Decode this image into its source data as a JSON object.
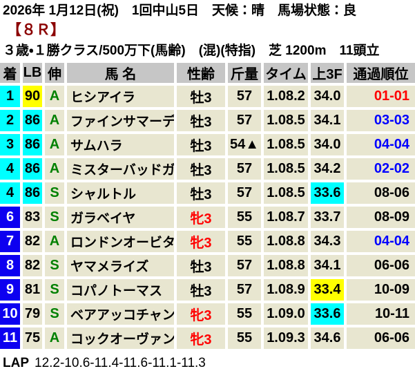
{
  "header": {
    "date_line": "2026年 1月12日(祝)　1回中山5日　天候：晴　馬場状態：良",
    "race_number": "【８Ｒ】",
    "conditions_line": "３歳・１勝クラス/500万下(馬齢)　(混)(特指)　芝 1200m　11頭立"
  },
  "table": {
    "columns": [
      {
        "id": "finish",
        "label": "着"
      },
      {
        "id": "lb",
        "label": "LB"
      },
      {
        "id": "nobi",
        "label": "伸"
      },
      {
        "id": "name",
        "label": "馬 名"
      },
      {
        "id": "sexage",
        "label": "性齢"
      },
      {
        "id": "weight",
        "label": "斤量"
      },
      {
        "id": "time",
        "label": "タイム"
      },
      {
        "id": "last3f",
        "label": "上3F"
      },
      {
        "id": "passing",
        "label": "通過順位"
      }
    ],
    "rows": [
      {
        "finish": "1",
        "lb": "90",
        "nobi": "A",
        "name": "ヒシアイラ",
        "sexage": "牡3",
        "weight": "57",
        "time": "1.08.2",
        "last3f": "34.0",
        "passing": "01-01",
        "finish_style": "cyan",
        "lb_style": "yellow",
        "sex_style": "male",
        "last3f_style": "plain",
        "passing_style": "red"
      },
      {
        "finish": "2",
        "lb": "86",
        "nobi": "A",
        "name": "ファインサマーデイ",
        "sexage": "牡3",
        "weight": "57",
        "time": "1.08.5",
        "last3f": "34.1",
        "passing": "03-03",
        "finish_style": "cyan",
        "lb_style": "cyan",
        "sex_style": "male",
        "last3f_style": "plain",
        "passing_style": "blue"
      },
      {
        "finish": "3",
        "lb": "86",
        "nobi": "A",
        "name": "サムハラ",
        "sexage": "牡3",
        "weight": "54▲",
        "time": "1.08.5",
        "last3f": "34.0",
        "passing": "04-04",
        "finish_style": "cyan",
        "lb_style": "cyan",
        "sex_style": "male",
        "last3f_style": "plain",
        "passing_style": "blue"
      },
      {
        "finish": "4",
        "lb": "86",
        "nobi": "A",
        "name": "ミスターバッドガイ",
        "sexage": "牡3",
        "weight": "57",
        "time": "1.08.5",
        "last3f": "34.2",
        "passing": "02-02",
        "finish_style": "cyan",
        "lb_style": "cyan",
        "sex_style": "male",
        "last3f_style": "plain",
        "passing_style": "blue"
      },
      {
        "finish": "4",
        "lb": "86",
        "nobi": "S",
        "name": "シャルトル",
        "sexage": "牡3",
        "weight": "57",
        "time": "1.08.5",
        "last3f": "33.6",
        "passing": "08-06",
        "finish_style": "cyan",
        "lb_style": "cyan",
        "sex_style": "male",
        "last3f_style": "cyan",
        "passing_style": "black"
      },
      {
        "finish": "6",
        "lb": "83",
        "nobi": "S",
        "name": "ガラベイヤ",
        "sexage": "牝3",
        "weight": "55",
        "time": "1.08.7",
        "last3f": "33.7",
        "passing": "08-09",
        "finish_style": "blue",
        "lb_style": "plain",
        "sex_style": "female",
        "last3f_style": "plain",
        "passing_style": "black"
      },
      {
        "finish": "7",
        "lb": "82",
        "nobi": "A",
        "name": "ロンドンオービタル",
        "sexage": "牝3",
        "weight": "55",
        "time": "1.08.8",
        "last3f": "34.3",
        "passing": "04-04",
        "finish_style": "blue",
        "lb_style": "plain",
        "sex_style": "female",
        "last3f_style": "plain",
        "passing_style": "blue"
      },
      {
        "finish": "8",
        "lb": "82",
        "nobi": "S",
        "name": "ヤマメライズ",
        "sexage": "牡3",
        "weight": "57",
        "time": "1.08.8",
        "last3f": "34.1",
        "passing": "06-06",
        "finish_style": "blue",
        "lb_style": "plain",
        "sex_style": "male",
        "last3f_style": "plain",
        "passing_style": "black"
      },
      {
        "finish": "9",
        "lb": "81",
        "nobi": "S",
        "name": "コパノトーマス",
        "sexage": "牡3",
        "weight": "57",
        "time": "1.08.9",
        "last3f": "33.4",
        "passing": "10-09",
        "finish_style": "blue",
        "lb_style": "plain",
        "sex_style": "male",
        "last3f_style": "yellow",
        "passing_style": "black"
      },
      {
        "finish": "10",
        "lb": "79",
        "nobi": "S",
        "name": "ベアアッコチャン",
        "sexage": "牝3",
        "weight": "55",
        "time": "1.09.0",
        "last3f": "33.6",
        "passing": "10-11",
        "finish_style": "blue",
        "lb_style": "plain",
        "sex_style": "female",
        "last3f_style": "cyan",
        "passing_style": "black"
      },
      {
        "finish": "11",
        "lb": "75",
        "nobi": "A",
        "name": "コックオーヴァン",
        "sexage": "牝3",
        "weight": "55",
        "time": "1.09.3",
        "last3f": "34.6",
        "passing": "06-06",
        "finish_style": "blue",
        "lb_style": "plain",
        "sex_style": "female",
        "last3f_style": "plain",
        "passing_style": "black"
      }
    ]
  },
  "footer": {
    "lap_label": "LAP",
    "lap_times": "12.2-10.6-11.4-11.6-11.1-11.3"
  },
  "colors": {
    "row_bg": "#E8E6D0",
    "header_bg": "#C6C6C6",
    "highlight_cyan": "#00FFFF",
    "highlight_yellow": "#FFFF00",
    "finish_blue_bg": "#0D00F0",
    "grade_green": "#008000",
    "female_red": "#FF0000",
    "passing_red": "#FF0000",
    "passing_blue": "#0000FF",
    "race_number_red": "#8B0000"
  }
}
